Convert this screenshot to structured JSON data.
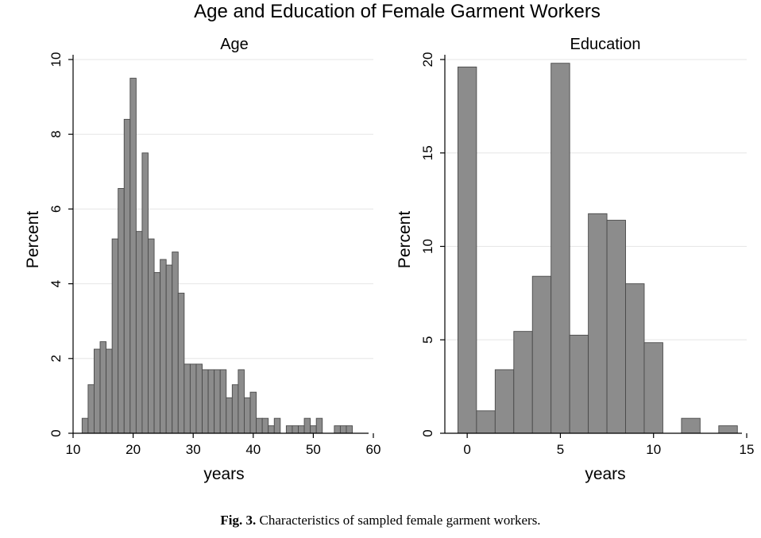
{
  "figure": {
    "title": "Age and Education of Female Garment Workers",
    "caption_label": "Fig. 3.",
    "caption_text": " Characteristics of sampled female garment workers."
  },
  "colors": {
    "bar_fill": "#8c8c8c",
    "bar_stroke": "#4a4a4a",
    "grid": "#e6e6e6",
    "axis": "#000000"
  },
  "chart_data": [
    {
      "type": "bar",
      "title": "Age",
      "xlabel": "years",
      "ylabel": "Percent",
      "xlim": [
        10,
        60
      ],
      "ylim": [
        0,
        10
      ],
      "xticks": [
        10,
        20,
        30,
        40,
        50,
        60
      ],
      "yticks": [
        0,
        2,
        4,
        6,
        8,
        10
      ],
      "grid": true,
      "bin_width": 1,
      "bins": [
        {
          "x": 12,
          "y": 0.4
        },
        {
          "x": 13,
          "y": 1.3
        },
        {
          "x": 14,
          "y": 2.25
        },
        {
          "x": 15,
          "y": 2.45
        },
        {
          "x": 16,
          "y": 2.25
        },
        {
          "x": 17,
          "y": 5.2
        },
        {
          "x": 18,
          "y": 6.55
        },
        {
          "x": 19,
          "y": 8.4
        },
        {
          "x": 20,
          "y": 9.5
        },
        {
          "x": 21,
          "y": 5.4
        },
        {
          "x": 22,
          "y": 7.5
        },
        {
          "x": 23,
          "y": 5.2
        },
        {
          "x": 24,
          "y": 4.3
        },
        {
          "x": 25,
          "y": 4.65
        },
        {
          "x": 26,
          "y": 4.5
        },
        {
          "x": 27,
          "y": 4.85
        },
        {
          "x": 28,
          "y": 3.75
        },
        {
          "x": 29,
          "y": 1.85
        },
        {
          "x": 30,
          "y": 1.85
        },
        {
          "x": 31,
          "y": 1.85
        },
        {
          "x": 32,
          "y": 1.7
        },
        {
          "x": 33,
          "y": 1.7
        },
        {
          "x": 34,
          "y": 1.7
        },
        {
          "x": 35,
          "y": 1.7
        },
        {
          "x": 36,
          "y": 0.95
        },
        {
          "x": 37,
          "y": 1.3
        },
        {
          "x": 38,
          "y": 1.7
        },
        {
          "x": 39,
          "y": 0.95
        },
        {
          "x": 40,
          "y": 1.1
        },
        {
          "x": 41,
          "y": 0.4
        },
        {
          "x": 42,
          "y": 0.4
        },
        {
          "x": 43,
          "y": 0.2
        },
        {
          "x": 44,
          "y": 0.4
        },
        {
          "x": 46,
          "y": 0.2
        },
        {
          "x": 47,
          "y": 0.2
        },
        {
          "x": 48,
          "y": 0.2
        },
        {
          "x": 49,
          "y": 0.4
        },
        {
          "x": 50,
          "y": 0.2
        },
        {
          "x": 51,
          "y": 0.4
        },
        {
          "x": 54,
          "y": 0.2
        },
        {
          "x": 55,
          "y": 0.2
        },
        {
          "x": 56,
          "y": 0.2
        }
      ]
    },
    {
      "type": "bar",
      "title": "Education",
      "xlabel": "years",
      "ylabel": "Percent",
      "xlim": [
        -1.2,
        15
      ],
      "ylim": [
        0,
        20
      ],
      "xticks": [
        0,
        5,
        10,
        15
      ],
      "yticks": [
        0,
        5,
        10,
        15,
        20
      ],
      "grid": true,
      "bin_width": 1,
      "bins": [
        {
          "x": 0,
          "y": 19.6
        },
        {
          "x": 1,
          "y": 1.2
        },
        {
          "x": 2,
          "y": 3.4
        },
        {
          "x": 3,
          "y": 5.45
        },
        {
          "x": 4,
          "y": 8.4
        },
        {
          "x": 5,
          "y": 19.8
        },
        {
          "x": 6,
          "y": 5.25
        },
        {
          "x": 7,
          "y": 11.75
        },
        {
          "x": 8,
          "y": 11.4
        },
        {
          "x": 9,
          "y": 8.0
        },
        {
          "x": 10,
          "y": 4.85
        },
        {
          "x": 12,
          "y": 0.8
        },
        {
          "x": 14,
          "y": 0.4
        }
      ]
    }
  ]
}
